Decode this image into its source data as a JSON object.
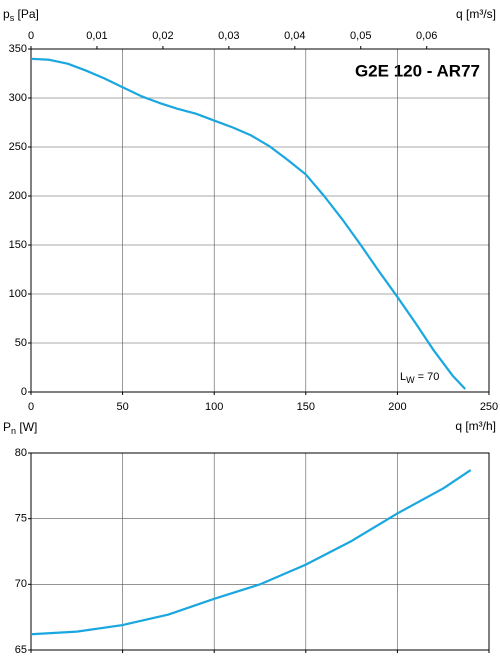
{
  "chart_data": [
    {
      "type": "line",
      "title": "G2E 120 - AR77",
      "ylabel": [
        "p",
        "s",
        " [Pa]"
      ],
      "xlabel": "q [m³/h]",
      "x2label": "q [m³/s]",
      "annotation": [
        "L",
        "W",
        " = 70"
      ],
      "x": [
        0,
        10,
        20,
        30,
        40,
        50,
        60,
        70,
        80,
        90,
        100,
        110,
        120,
        130,
        140,
        150,
        160,
        170,
        180,
        190,
        200,
        210,
        220,
        230,
        237
      ],
      "series": [
        {
          "name": "p_s",
          "color": "#1aa7e0",
          "values": [
            340,
            339,
            335,
            328,
            320,
            311,
            302,
            295,
            289,
            284,
            277,
            270,
            262,
            251,
            237,
            222,
            200,
            176,
            150,
            123,
            97,
            70,
            42,
            17,
            3
          ]
        }
      ],
      "xlim": [
        0,
        250
      ],
      "xticks": [
        0,
        50,
        100,
        150,
        200,
        250
      ],
      "ylim": [
        0,
        350
      ],
      "yticks": [
        0,
        50,
        100,
        150,
        200,
        250,
        300,
        350
      ],
      "x2lim": [
        0,
        0.069444
      ],
      "x2ticks": [
        0,
        {
          "value": 0.01,
          "label": "0,01"
        },
        {
          "value": 0.02,
          "label": "0,02"
        },
        {
          "value": 0.03,
          "label": "0,03"
        },
        {
          "value": 0.04,
          "label": "0,04"
        },
        {
          "value": 0.05,
          "label": "0,05"
        },
        {
          "value": 0.06,
          "label": "0,06"
        }
      ],
      "grid": true
    },
    {
      "type": "line",
      "ylabel": [
        "P",
        "n",
        " [W]"
      ],
      "x": [
        0,
        25,
        50,
        75,
        100,
        125,
        150,
        175,
        200,
        225,
        240
      ],
      "series": [
        {
          "name": "P_n",
          "color": "#1aa7e0",
          "values": [
            66.2,
            66.4,
            66.9,
            67.7,
            68.9,
            70.0,
            71.5,
            73.3,
            75.4,
            77.3,
            78.7
          ]
        }
      ],
      "xlim": [
        0,
        250
      ],
      "xticks": [
        0,
        50,
        100,
        150,
        200,
        250
      ],
      "ylim": [
        65,
        80
      ],
      "yticks": [
        65,
        70,
        75,
        80
      ],
      "grid": true
    }
  ]
}
